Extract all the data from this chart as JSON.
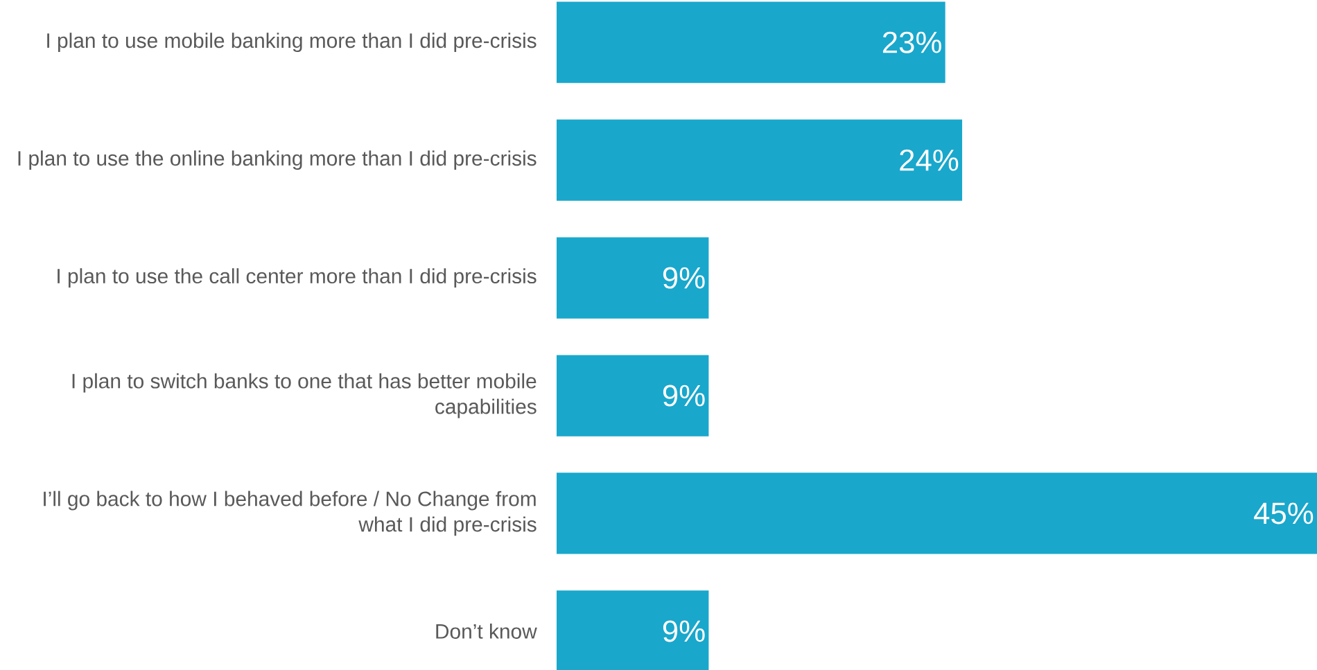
{
  "chart_data": {
    "type": "bar",
    "orientation": "horizontal",
    "categories": [
      "I plan to use mobile banking more than I did pre-crisis",
      "I plan to use the online banking more than I did pre-crisis",
      "I plan to use the call center more than I did pre-crisis",
      "I plan to switch banks to one that has better mobile capabilities",
      "I’ll go back to how I behaved before / No Change from what I did pre-crisis",
      "Don’t know"
    ],
    "values": [
      23,
      24,
      9,
      9,
      45,
      9
    ],
    "value_labels": [
      "23%",
      "24%",
      "9%",
      "9%",
      "45%",
      "9%"
    ],
    "color": "#19a7cc"
  }
}
